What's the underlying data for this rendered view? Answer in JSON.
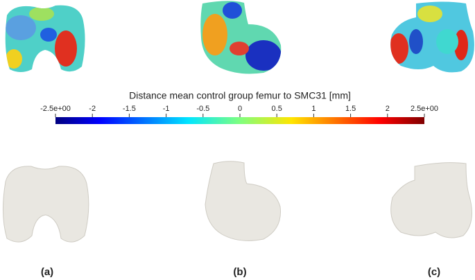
{
  "colorbar": {
    "title": "Distance mean control group  femur to SMC31 [mm]",
    "lim": [
      -2.5,
      2.5
    ],
    "ticks": [
      {
        "value": -2.5,
        "label": "-2.5e+00"
      },
      -2,
      -1.5,
      -1,
      -0.5,
      0,
      0.5,
      1,
      1.5,
      2,
      {
        "value": 2.5,
        "label": "2.5e+00"
      }
    ]
  },
  "panels": [
    "(a)",
    "(b)",
    "(c)"
  ]
}
